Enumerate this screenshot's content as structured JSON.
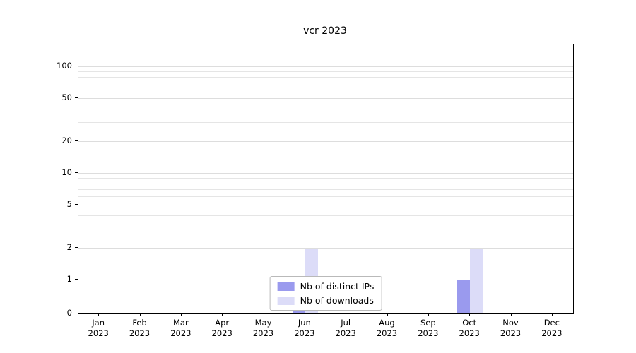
{
  "title": "vcr 2023",
  "chart_data": {
    "type": "bar",
    "title": "vcr 2023",
    "categories": [
      {
        "month": "Jan",
        "year": "2023"
      },
      {
        "month": "Feb",
        "year": "2023"
      },
      {
        "month": "Mar",
        "year": "2023"
      },
      {
        "month": "Apr",
        "year": "2023"
      },
      {
        "month": "May",
        "year": "2023"
      },
      {
        "month": "Jun",
        "year": "2023"
      },
      {
        "month": "Jul",
        "year": "2023"
      },
      {
        "month": "Aug",
        "year": "2023"
      },
      {
        "month": "Sep",
        "year": "2023"
      },
      {
        "month": "Oct",
        "year": "2023"
      },
      {
        "month": "Nov",
        "year": "2023"
      },
      {
        "month": "Dec",
        "year": "2023"
      }
    ],
    "series": [
      {
        "name": "Nb of distinct IPs",
        "color": "#9a9aee",
        "values": [
          0,
          0,
          0,
          0,
          0,
          1,
          0,
          0,
          0,
          1,
          0,
          0
        ]
      },
      {
        "name": "Nb of downloads",
        "color": "#dcdcf8",
        "values": [
          0,
          0,
          0,
          0,
          0,
          2,
          0,
          0,
          0,
          2,
          0,
          0
        ]
      }
    ],
    "xlabel": "",
    "ylabel": "",
    "yscale": "symlog",
    "yticks": [
      0,
      1,
      2,
      5,
      10,
      20,
      50,
      100
    ],
    "ylim": [
      0,
      160
    ],
    "grid": true,
    "legend_position": "lower center"
  }
}
